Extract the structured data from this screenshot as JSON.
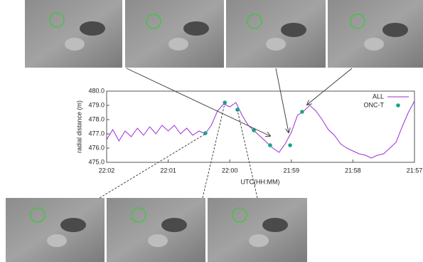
{
  "chart_data": {
    "type": "line",
    "xlabel": "UTC(HH:MM)",
    "ylabel": "radial distance (m)",
    "xlim": [
      1322,
      1317
    ],
    "ylim": [
      475,
      480
    ],
    "xticks": [
      {
        "value": 1322,
        "label": "22:02"
      },
      {
        "value": 1321,
        "label": "22:01"
      },
      {
        "value": 1320,
        "label": "22:00"
      },
      {
        "value": 1319,
        "label": "21:59"
      },
      {
        "value": 1318,
        "label": "21:58"
      },
      {
        "value": 1317,
        "label": "21:57"
      }
    ],
    "yticks": [
      {
        "value": 475,
        "label": "475.0"
      },
      {
        "value": 476,
        "label": "476.0"
      },
      {
        "value": 477,
        "label": "477.0"
      },
      {
        "value": 478,
        "label": "478.0"
      },
      {
        "value": 479,
        "label": "479.0"
      },
      {
        "value": 480,
        "label": "480.0"
      }
    ],
    "legend": "top-right",
    "series": [
      {
        "name": "ALL",
        "color": "#9b2fd6",
        "style": "line",
        "x": [
          1322.0,
          1321.9,
          1321.8,
          1321.7,
          1321.6,
          1321.5,
          1321.4,
          1321.3,
          1321.2,
          1321.1,
          1321.0,
          1320.9,
          1320.8,
          1320.7,
          1320.6,
          1320.5,
          1320.4,
          1320.3,
          1320.2,
          1320.1,
          1320.0,
          1319.9,
          1319.8,
          1319.7,
          1319.6,
          1319.5,
          1319.4,
          1319.3,
          1319.2,
          1319.1,
          1319.0,
          1318.9,
          1318.8,
          1318.7,
          1318.6,
          1318.5,
          1318.4,
          1318.3,
          1318.2,
          1318.1,
          1318.0,
          1317.9,
          1317.8,
          1317.7,
          1317.6,
          1317.5,
          1317.4,
          1317.3,
          1317.2,
          1317.1,
          1317.0
        ],
        "values": [
          476.6,
          477.3,
          476.5,
          477.2,
          476.8,
          477.4,
          476.9,
          477.5,
          477.0,
          477.6,
          477.2,
          477.6,
          477.0,
          477.4,
          476.9,
          477.2,
          477.0,
          477.6,
          478.6,
          479.1,
          478.9,
          479.2,
          478.3,
          477.6,
          477.2,
          476.8,
          476.4,
          476.0,
          475.7,
          476.3,
          477.1,
          478.3,
          478.6,
          479.0,
          478.6,
          478.0,
          477.3,
          476.9,
          476.3,
          476.0,
          475.8,
          475.6,
          475.5,
          475.3,
          475.5,
          475.6,
          476.0,
          476.4,
          477.5,
          478.5,
          479.3
        ]
      },
      {
        "name": "ONC-T",
        "color": "#1aa38a",
        "style": "points",
        "x": [
          1320.395,
          1320.08,
          1319.875,
          1319.61,
          1319.345,
          1319.02,
          1318.825
        ],
        "values": [
          477.05,
          479.2,
          478.7,
          477.25,
          476.2,
          476.2,
          478.55
        ]
      }
    ]
  }
}
